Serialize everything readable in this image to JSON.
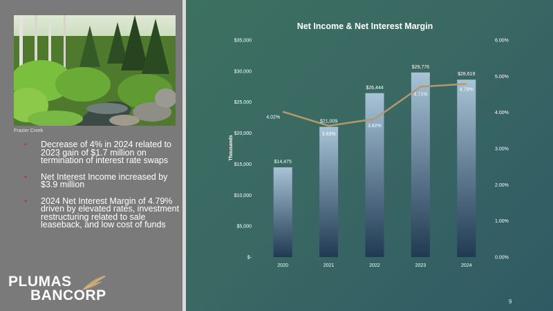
{
  "photo": {
    "caption": "Frazier Creek"
  },
  "bullets": [
    {
      "text": "Decrease of 4% in 2024 related to 2023 gain of $1.7 million on termination of interest rate swaps"
    },
    {
      "text": "Net Interest Income increased by $3.9 million"
    },
    {
      "text": "2024 Net Interest Margin of 4.79% driven by elevated rates, investment restructuring related to sale leaseback, and low cost of funds"
    }
  ],
  "logo": {
    "line1": "PLUMAS",
    "line2": "BANCORP"
  },
  "page_number": "9",
  "colors": {
    "bar_top": "#a8c3d6",
    "bar_bottom": "#1f3a52",
    "line": "#b49a6a",
    "bullet_marker": "#c0392b",
    "text": "#ffffff"
  },
  "chart_data": {
    "type": "bar",
    "title": "Net Income & Net Interest Margin",
    "xlabel": "",
    "ylabel": "Thousands",
    "categories": [
      "2020",
      "2021",
      "2022",
      "2023",
      "2024"
    ],
    "series": [
      {
        "type": "bar",
        "axis": "left",
        "values": [
          14475,
          21009,
          26444,
          29776,
          28619
        ],
        "labels": [
          "$14,475",
          "$21,009",
          "$26,444",
          "$29,776",
          "$28,619"
        ]
      },
      {
        "type": "line",
        "axis": "right",
        "values": [
          4.02,
          3.63,
          3.82,
          4.71,
          4.79
        ],
        "labels": [
          "4.02%",
          "3.63%",
          "3.82%",
          "4.71%",
          "4.79%"
        ]
      }
    ],
    "ylim": [
      0,
      35000
    ],
    "y2lim": [
      0,
      6
    ],
    "yticks": [
      0,
      5000,
      10000,
      15000,
      20000,
      25000,
      30000,
      35000
    ],
    "ytick_labels": [
      "$-",
      "$5,000",
      "$10,000",
      "$15,000",
      "$20,000",
      "$25,000",
      "$30,000",
      "$35,000"
    ],
    "y2ticks": [
      0,
      1,
      2,
      3,
      4,
      5,
      6
    ],
    "y2tick_labels": [
      "0.00%",
      "1.00%",
      "2.00%",
      "3.00%",
      "4.00%",
      "5.00%",
      "6.00%"
    ],
    "grid": false,
    "legend": "none"
  }
}
